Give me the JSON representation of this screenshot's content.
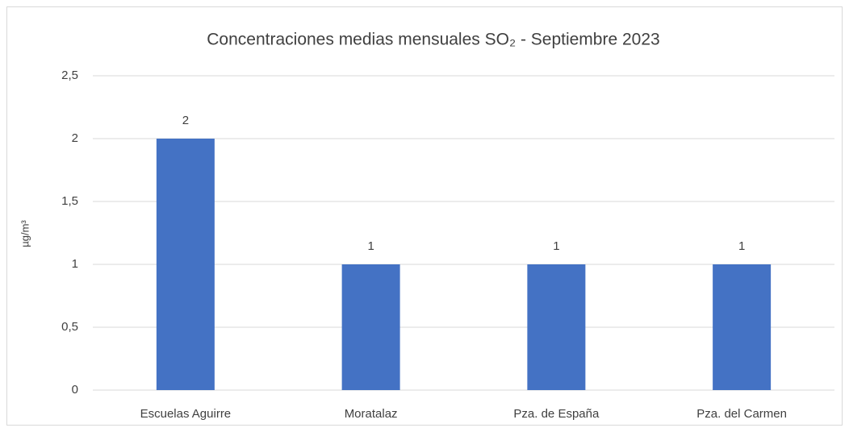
{
  "chart_data": {
    "type": "bar",
    "title": "Concentraciones medias mensuales SO₂ - Septiembre 2023",
    "y_label": "µg/m³",
    "categories": [
      "Escuelas Aguirre",
      "Moratalaz",
      "Pza. de España",
      "Pza. del Carmen"
    ],
    "values": [
      2,
      1,
      1,
      1
    ],
    "color": "#4472c4",
    "ylim": [
      0,
      2.5
    ],
    "yticks": [
      0,
      {
        "value": 0.5,
        "label": "0,5"
      },
      1,
      {
        "value": 1.5,
        "label": "1,5"
      },
      2,
      {
        "value": 2.5,
        "label": "2,5"
      }
    ],
    "grid": true
  }
}
